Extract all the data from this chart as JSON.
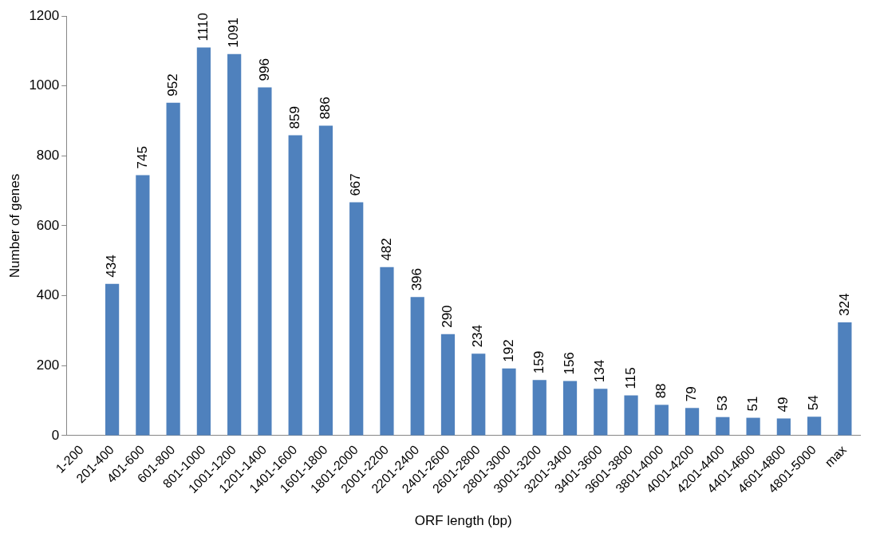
{
  "chart_data": {
    "type": "bar",
    "xlabel": "ORF length (bp)",
    "ylabel": "Number of genes",
    "categories": [
      "1-200",
      "201-400",
      "401-600",
      "601-800",
      "801-1000",
      "1001-1200",
      "1201-1400",
      "1401-1600",
      "1601-1800",
      "1801-2000",
      "2001-2200",
      "2201-2400",
      "2401-2600",
      "2601-2800",
      "2801-3000",
      "3001-3200",
      "3201-3400",
      "3401-3600",
      "3601-3800",
      "3801-4000",
      "4001-4200",
      "4201-4400",
      "4401-4600",
      "4601-4800",
      "4801-5000",
      "max"
    ],
    "values": [
      null,
      434,
      745,
      952,
      1110,
      1091,
      996,
      859,
      886,
      667,
      482,
      396,
      290,
      234,
      192,
      159,
      156,
      134,
      115,
      88,
      79,
      53,
      51,
      49,
      54,
      324
    ],
    "color": "#4f81bd",
    "ylim": [
      0,
      1200
    ],
    "yticks": [
      0,
      200,
      400,
      600,
      800,
      1000,
      1200
    ],
    "grid": false,
    "data_labels": true
  }
}
